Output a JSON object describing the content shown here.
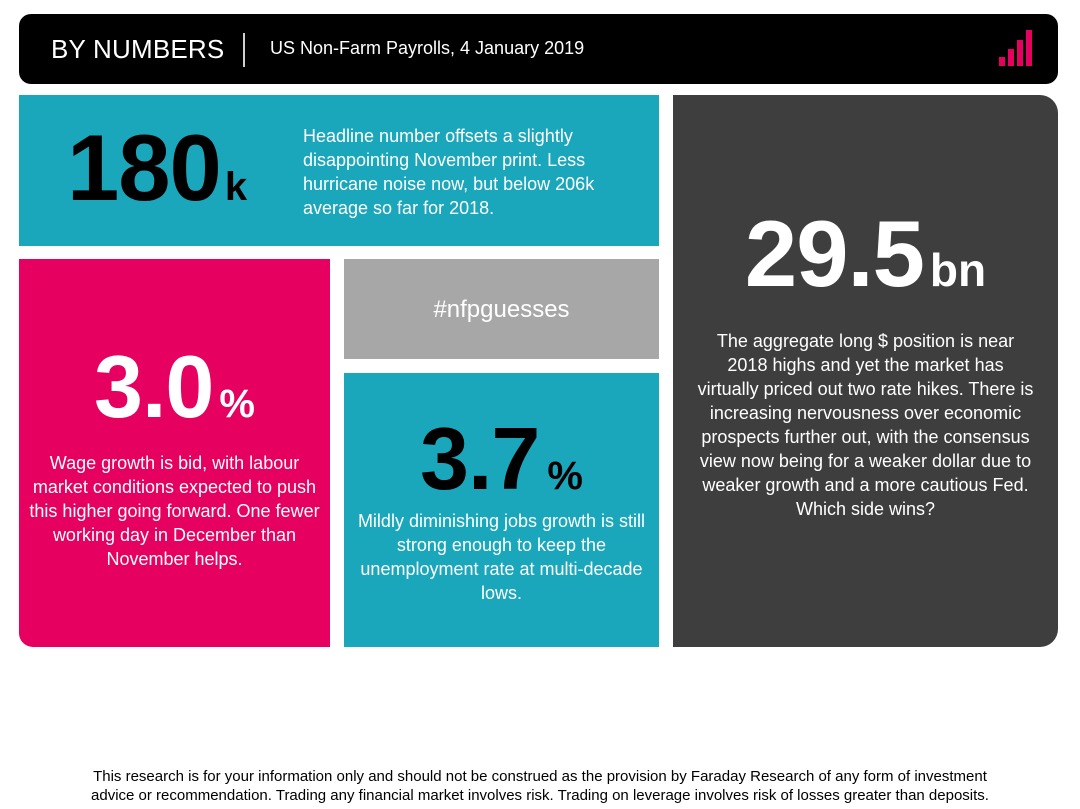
{
  "header": {
    "title": "BY NUMBERS",
    "subtitle": "US Non-Farm Payrolls, 4 January 2019",
    "icon": "bar-chart-icon",
    "accent_color": "#e6005f"
  },
  "tiles": {
    "headline": {
      "value": "180",
      "unit": "k",
      "text": "Headline number offsets a slightly disappointing November print. Less hurricane noise now, but below 206k average so far for 2018.",
      "color": "#1aa7bc"
    },
    "wage": {
      "value": "3.0",
      "unit": "%",
      "text": "Wage growth is bid, with labour market conditions expected to push this higher going forward. One fewer working day in December than November helps.",
      "color": "#e6005f"
    },
    "hashtag": {
      "text": "#nfpguesses",
      "color": "#a7a7a8"
    },
    "unemployment": {
      "value": "3.7",
      "unit": "%",
      "text": "Mildly diminishing jobs growth is still strong enough to keep the unemployment rate at multi-decade lows.",
      "color": "#1aa7bc"
    },
    "position": {
      "value": "29.5",
      "unit": "bn",
      "text": "The aggregate long $ position is near 2018 highs and yet the market has virtually priced out two rate hikes. There is increasing nervousness over economic prospects further out, with the consensus view now being for a weaker dollar due to weaker growth and a more cautious Fed. Which side wins?",
      "color": "#3f3e3f"
    }
  },
  "footer": {
    "disclaimer_line1": "This research is for your information only and should not be construed as the provision by Faraday Research of any form of investment",
    "disclaimer_line2": "advice or recommendation. Trading any financial market involves risk. Trading on leverage involves risk of losses greater than deposits."
  }
}
